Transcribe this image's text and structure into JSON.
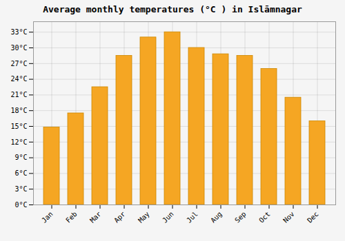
{
  "chart_data": {
    "type": "bar",
    "title": "Average monthly temperatures (°C ) in Islāmnagar",
    "categories": [
      "Jan",
      "Feb",
      "Mar",
      "Apr",
      "May",
      "Jun",
      "Jul",
      "Aug",
      "Sep",
      "Oct",
      "Nov",
      "Dec"
    ],
    "values": [
      14.8,
      17.5,
      22.5,
      28.5,
      32.0,
      33.0,
      30.0,
      28.8,
      28.5,
      26.0,
      20.5,
      16.0
    ],
    "color": "#F5A623",
    "ylim": [
      0,
      35
    ],
    "yticks": [
      {
        "value": 0,
        "label": "0°C"
      },
      {
        "value": 3,
        "label": "3°C"
      },
      {
        "value": 6,
        "label": "6°C"
      },
      {
        "value": 9,
        "label": "9°C"
      },
      {
        "value": 12,
        "label": "12°C"
      },
      {
        "value": 15,
        "label": "15°C"
      },
      {
        "value": 18,
        "label": "18°C"
      },
      {
        "value": 21,
        "label": "21°C"
      },
      {
        "value": 24,
        "label": "24°C"
      },
      {
        "value": 27,
        "label": "27°C"
      },
      {
        "value": 30,
        "label": "30°C"
      },
      {
        "value": 33,
        "label": "33°C"
      }
    ],
    "grid": true
  }
}
